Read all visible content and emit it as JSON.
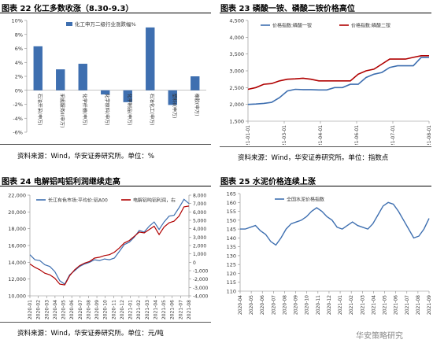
{
  "panels": [
    {
      "title": "图表 22 化工多数收涨（8.30-9.3）",
      "source": "资料来源：Wind，华安证券研究所。单位：%"
    },
    {
      "title": "图表 23 磷酸一铵、磷酸二铵价格高位",
      "source": "资料来源：Wind，华安证券研究所。单位：指数点"
    },
    {
      "title": "图表 24 电解铝吨铝利润继续走高",
      "source": "资料来源：Wind，华安证券研究所。单位：元/吨"
    },
    {
      "title": "图表 25 水泥价格连续上涨",
      "source": ""
    }
  ],
  "watermark": "华安策略研究",
  "chart_data": [
    {
      "type": "bar",
      "legend": "化工申万二级行业涨跌幅%",
      "categories": [
        "石油开采(申万)",
        "采掘服务Ⅱ(申万)",
        "化学纤维(申万)",
        "化学原料(申万)",
        "化学制品(申万)",
        "石油化工(申万)",
        "塑料Ⅱ(申万)",
        "橡胶(申万)"
      ],
      "values": [
        6.3,
        3.0,
        3.8,
        -0.6,
        -1.7,
        9.0,
        -2.1,
        2.0
      ],
      "ylim": [
        -6,
        10
      ],
      "yticks": [
        "-6%",
        "-4%",
        "-2%",
        "0%",
        "2%",
        "4%",
        "6%",
        "8%",
        "10%"
      ],
      "color": "#3e6fb0"
    },
    {
      "type": "line",
      "series": [
        {
          "name": "价格指数:磷酸一铵",
          "color": "#3e6fb0",
          "values": [
            2000,
            2010,
            2030,
            2060,
            2200,
            2400,
            2450,
            2440,
            2440,
            2430,
            2430,
            2500,
            2500,
            2600,
            2600,
            2800,
            2900,
            2950,
            3100,
            3150,
            3150,
            3150,
            3400,
            3400
          ]
        },
        {
          "name": "价格指数:磷酸二铵",
          "color": "#b00000",
          "values": [
            2450,
            2500,
            2600,
            2620,
            2700,
            2750,
            2760,
            2780,
            2750,
            2700,
            2700,
            2700,
            2700,
            2700,
            2900,
            3000,
            3050,
            3200,
            3350,
            3350,
            3350,
            3400,
            3450,
            3450
          ]
        }
      ],
      "xticks": [
        "2021-01-01",
        "2021-03-01",
        "2021-04-01",
        "2021-06-01",
        "2021-07-01",
        "2021-08-01"
      ],
      "ylim": [
        1500,
        4500
      ],
      "yticks": [
        "1,500",
        "2,000",
        "2,500",
        "3,000",
        "3,500",
        "4,000",
        "4,500"
      ]
    },
    {
      "type": "line",
      "series": [
        {
          "name": "长江有色市场:平均价:铝A00",
          "color": "#3e6fb0",
          "axis": "left",
          "values": [
            14900,
            14300,
            14200,
            13700,
            13500,
            12900,
            11800,
            11400,
            12500,
            13000,
            13500,
            13800,
            14000,
            14300,
            14200,
            14400,
            14300,
            14500,
            15300,
            16100,
            16400,
            17000,
            17800,
            17600,
            18300,
            18800,
            17900,
            18800,
            19500,
            19600,
            20500,
            21500,
            21000
          ]
        },
        {
          "name": "电解铝吨铝利润，右",
          "color": "#b00000",
          "axis": "right",
          "values": [
            -200,
            -600,
            -900,
            -1300,
            -1500,
            -1900,
            -2600,
            -2700,
            -1600,
            -900,
            -400,
            -100,
            100,
            500,
            600,
            800,
            900,
            1200,
            1700,
            2300,
            2600,
            3100,
            3600,
            3500,
            3900,
            4300,
            3300,
            4200,
            4700,
            4900,
            5500,
            6600,
            6700
          ]
        }
      ],
      "xticks": [
        "2020-01",
        "2020-02",
        "2020-03",
        "2020-04",
        "2020-05",
        "2020-06",
        "2020-07",
        "2020-08",
        "2020-09",
        "2020-10",
        "2020-11",
        "2020-12",
        "2021-01",
        "2021-02",
        "2021-03",
        "2021-04",
        "2021-05",
        "2021-06",
        "2021-07",
        "2021-08"
      ],
      "ylim": [
        10000,
        22000
      ],
      "yticks": [
        "10,000",
        "12,000",
        "14,000",
        "16,000",
        "18,000",
        "20,000",
        "22,000"
      ],
      "y2lim": [
        -4000,
        8000
      ],
      "y2ticks": [
        "-4,000",
        "-3,000",
        "-2,000",
        "-1,000",
        "0",
        "1,000",
        "2,000",
        "3,000",
        "4,000",
        "5,000",
        "6,000",
        "7,000",
        "8,000"
      ]
    },
    {
      "type": "line",
      "series": [
        {
          "name": "全国水泥价格指数",
          "color": "#3e6fb0",
          "values": [
            145,
            145,
            146,
            147,
            144,
            142,
            138,
            136,
            140,
            145,
            148,
            149,
            150,
            152,
            155,
            157,
            155,
            152,
            150,
            146,
            145,
            147,
            149,
            147,
            146,
            145,
            148,
            153,
            158,
            160,
            159,
            155,
            150,
            145,
            140,
            141,
            145,
            151
          ]
        }
      ],
      "xticks": [
        "2020-04",
        "2020-05",
        "2020-06",
        "2020-07",
        "2020-08",
        "2020-09",
        "2020-10",
        "2020-11",
        "2020-12",
        "2021-01",
        "2021-02",
        "2021-03",
        "2021-04",
        "2021-05",
        "2021-06",
        "2021-07",
        "2021-08",
        "2021-09"
      ],
      "ylim": [
        110,
        165
      ],
      "yticks": [
        "110",
        "115",
        "120",
        "125",
        "130",
        "135",
        "140",
        "145",
        "150",
        "155",
        "160",
        "165"
      ]
    }
  ]
}
